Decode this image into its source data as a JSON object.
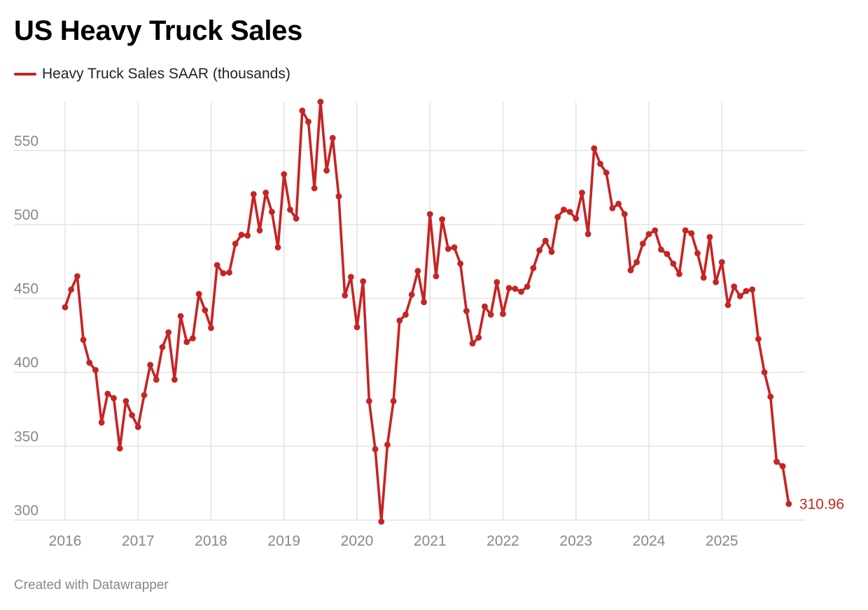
{
  "title": "US Heavy Truck Sales",
  "footer": "Created with Datawrapper",
  "colors": {
    "series": "#c62424",
    "grid": "#e3e3e3",
    "tick_text": "#888888"
  },
  "chart_data": {
    "type": "line",
    "title": "US Heavy Truck Sales",
    "xlabel": "",
    "ylabel": "",
    "ylim": [
      300,
      580
    ],
    "y_ticks": [
      300,
      350,
      400,
      450,
      500,
      550
    ],
    "x_ticks": [
      "2016",
      "2017",
      "2018",
      "2019",
      "2020",
      "2021",
      "2022",
      "2023",
      "2024",
      "2025"
    ],
    "x_unit": "month",
    "grid": true,
    "legend": "top-left",
    "end_label": "310.96",
    "series": [
      {
        "name": "Heavy Truck Sales SAAR (thousands)",
        "color": "#c62424",
        "x": [
          "2016-01",
          "2016-02",
          "2016-03",
          "2016-04",
          "2016-05",
          "2016-06",
          "2016-07",
          "2016-08",
          "2016-09",
          "2016-10",
          "2016-11",
          "2016-12",
          "2017-01",
          "2017-02",
          "2017-03",
          "2017-04",
          "2017-05",
          "2017-06",
          "2017-07",
          "2017-08",
          "2017-09",
          "2017-10",
          "2017-11",
          "2017-12",
          "2018-01",
          "2018-02",
          "2018-03",
          "2018-04",
          "2018-05",
          "2018-06",
          "2018-07",
          "2018-08",
          "2018-09",
          "2018-10",
          "2018-11",
          "2018-12",
          "2019-01",
          "2019-02",
          "2019-03",
          "2019-04",
          "2019-05",
          "2019-06",
          "2019-07",
          "2019-08",
          "2019-09",
          "2019-10",
          "2019-11",
          "2019-12",
          "2020-01",
          "2020-02",
          "2020-03",
          "2020-04",
          "2020-05",
          "2020-06",
          "2020-07",
          "2020-08",
          "2020-09",
          "2020-10",
          "2020-11",
          "2020-12",
          "2021-01",
          "2021-02",
          "2021-03",
          "2021-04",
          "2021-05",
          "2021-06",
          "2021-07",
          "2021-08",
          "2021-09",
          "2021-10",
          "2021-11",
          "2021-12",
          "2022-01",
          "2022-02",
          "2022-03",
          "2022-04",
          "2022-05",
          "2022-06",
          "2022-07",
          "2022-08",
          "2022-09",
          "2022-10",
          "2022-11",
          "2022-12",
          "2023-01",
          "2023-02",
          "2023-03",
          "2023-04",
          "2023-05",
          "2023-06",
          "2023-07",
          "2023-08",
          "2023-09",
          "2023-10",
          "2023-11",
          "2023-12",
          "2024-01",
          "2024-02",
          "2024-03",
          "2024-04",
          "2024-05",
          "2024-06",
          "2024-07",
          "2024-08",
          "2024-09",
          "2024-10",
          "2024-11",
          "2024-12",
          "2025-01",
          "2025-02",
          "2025-03",
          "2025-04",
          "2025-05",
          "2025-06",
          "2025-07",
          "2025-08",
          "2025-09",
          "2025-10",
          "2025-11",
          "2025-12"
        ],
        "values": [
          444,
          456,
          465,
          422,
          406.5,
          401.5,
          366,
          385.5,
          382.5,
          348.5,
          380.5,
          371,
          363,
          384.5,
          405,
          395,
          417,
          427,
          395,
          438,
          420.5,
          423,
          453,
          442,
          430,
          472.5,
          467,
          467.5,
          487,
          493,
          492.5,
          520.5,
          496,
          521.5,
          508.5,
          484.5,
          534,
          510,
          504,
          577,
          569.5,
          524.5,
          583,
          536.5,
          558.5,
          519,
          452,
          464.5,
          430.5,
          461.5,
          380.5,
          348,
          299,
          351,
          380.5,
          435,
          439,
          452.5,
          468.5,
          447.5,
          507,
          465,
          503.5,
          483.5,
          484.5,
          473.5,
          441.5,
          419.5,
          423.5,
          444.5,
          439,
          461,
          439.5,
          457,
          456.5,
          454.5,
          458,
          470.5,
          482.5,
          489,
          481.5,
          505,
          510,
          508.5,
          504,
          521.5,
          493.5,
          551.5,
          541,
          535,
          511,
          514,
          507,
          469,
          474.5,
          487,
          493.5,
          496,
          483,
          480,
          473.5,
          466.5,
          496,
          494,
          480.5,
          464,
          491.5,
          461,
          474.5,
          445.5,
          458,
          451.5,
          455,
          456,
          422.5,
          400,
          383.5,
          339.5,
          336.5,
          310.96
        ]
      }
    ]
  }
}
